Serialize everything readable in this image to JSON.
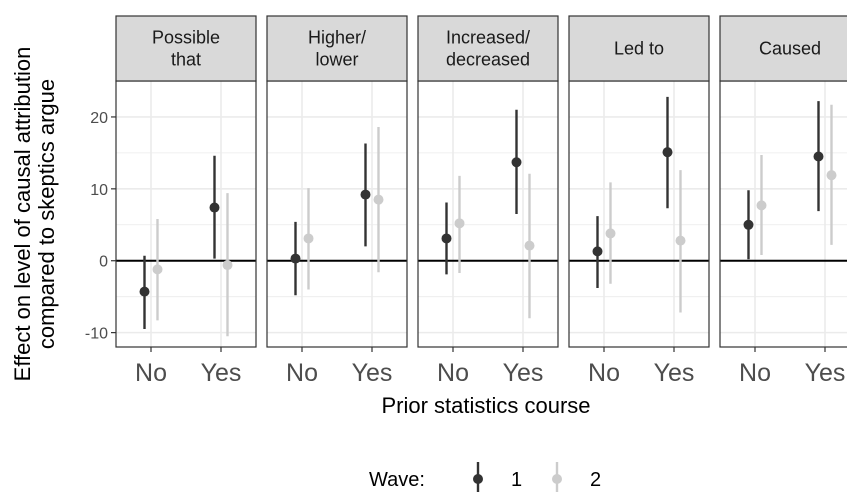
{
  "chart_data": {
    "type": "scatter",
    "title": "",
    "xlabel": "Prior statistics course",
    "ylabel": [
      "Effect on level of causal attribution",
      "compared to skeptics argue"
    ],
    "categories": [
      "No",
      "Yes"
    ],
    "ylim": [
      -12,
      25
    ],
    "yticks": [
      -10,
      0,
      10,
      20
    ],
    "ytick_labels": [
      "-10",
      "0",
      "10",
      "20"
    ],
    "grid": true,
    "hline": 0,
    "legend": {
      "title": "Wave:",
      "position": "bottom",
      "labels": [
        "1",
        "2"
      ]
    },
    "colors": {
      "wave1": "#333333",
      "wave2": "#cccccc",
      "strip_bg": "#d9d9d9",
      "border": "#333333",
      "grid": "#ebebeb"
    },
    "panels": [
      {
        "label": [
          "Possible",
          "that"
        ],
        "series": [
          {
            "name": "1",
            "values": [
              -4.3,
              7.4
            ],
            "lower": [
              -9.5,
              0.3
            ],
            "upper": [
              0.7,
              14.6
            ]
          },
          {
            "name": "2",
            "values": [
              -1.2,
              -0.6
            ],
            "lower": [
              -8.3,
              -10.5
            ],
            "upper": [
              5.8,
              9.4
            ]
          }
        ]
      },
      {
        "label": [
          "Higher/",
          "lower"
        ],
        "series": [
          {
            "name": "1",
            "values": [
              0.3,
              9.2
            ],
            "lower": [
              -4.8,
              2.0
            ],
            "upper": [
              5.4,
              16.3
            ]
          },
          {
            "name": "2",
            "values": [
              3.1,
              8.5
            ],
            "lower": [
              -4.0,
              -1.6
            ],
            "upper": [
              10.1,
              18.6
            ]
          }
        ]
      },
      {
        "label": [
          "Increased/",
          "decreased"
        ],
        "series": [
          {
            "name": "1",
            "values": [
              3.1,
              13.7
            ],
            "lower": [
              -1.9,
              6.5
            ],
            "upper": [
              8.1,
              21.0
            ]
          },
          {
            "name": "2",
            "values": [
              5.2,
              2.1
            ],
            "lower": [
              -1.7,
              -8.0
            ],
            "upper": [
              11.8,
              12.1
            ]
          }
        ]
      },
      {
        "label": [
          "Led to"
        ],
        "series": [
          {
            "name": "1",
            "values": [
              1.3,
              15.1
            ],
            "lower": [
              -3.8,
              7.3
            ],
            "upper": [
              6.2,
              22.8
            ]
          },
          {
            "name": "2",
            "values": [
              3.8,
              2.8
            ],
            "lower": [
              -3.2,
              -7.2
            ],
            "upper": [
              10.9,
              12.6
            ]
          }
        ]
      },
      {
        "label": [
          "Caused"
        ],
        "series": [
          {
            "name": "1",
            "values": [
              5.0,
              14.5
            ],
            "lower": [
              0.2,
              6.9
            ],
            "upper": [
              9.8,
              22.2
            ]
          },
          {
            "name": "2",
            "values": [
              7.7,
              11.9
            ],
            "lower": [
              0.8,
              2.2
            ],
            "upper": [
              14.7,
              21.7
            ]
          }
        ]
      }
    ]
  }
}
